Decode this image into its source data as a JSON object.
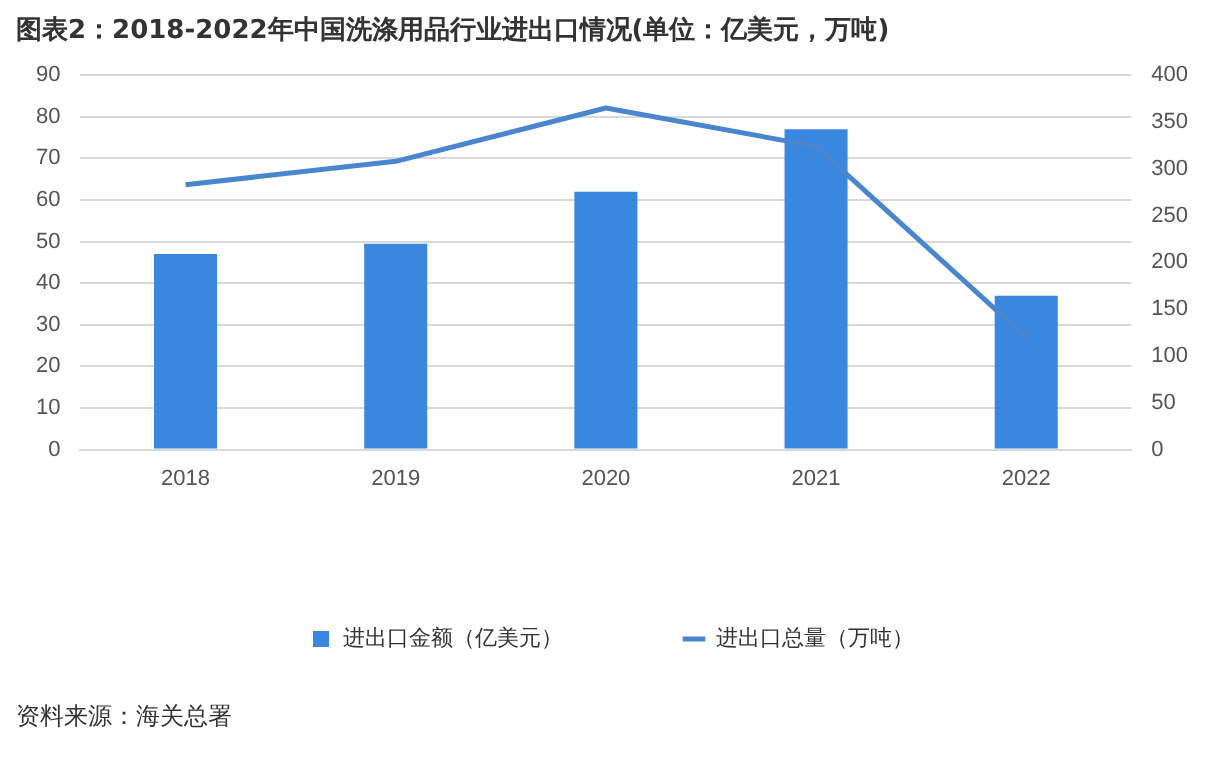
{
  "chart_data": {
    "type": "bar",
    "title": "图表2：2018-2022年中国洗涤用品行业进出口情况(单位：亿美元，万吨)",
    "categories": [
      "2018",
      "2019",
      "2020",
      "2021",
      "2022"
    ],
    "series": [
      {
        "name": "进出口金额（亿美元）",
        "color": "#3a87e0",
        "values": [
          47,
          49.5,
          62,
          77,
          37
        ]
      },
      {
        "name": "进出口总量（万吨）",
        "type": "line",
        "axis": "y2",
        "color": "#4a86d0",
        "values": [
          283,
          308,
          365,
          324,
          120
        ]
      }
    ],
    "ylim": [
      0,
      90
    ],
    "yticks": [
      0,
      10,
      20,
      30,
      40,
      50,
      60,
      70,
      80,
      90
    ],
    "y2lim": [
      0,
      400
    ],
    "y2ticks": [
      0,
      50,
      100,
      150,
      200,
      250,
      300,
      350,
      400
    ],
    "grid": "y",
    "legend": "bottom",
    "marker": "none",
    "line_style": "solid",
    "annotations": [
      "资料来源：海关总署"
    ]
  }
}
